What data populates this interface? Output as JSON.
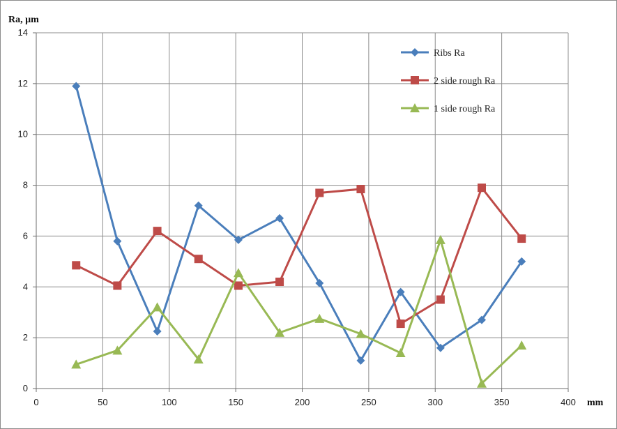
{
  "chart_data": {
    "type": "line",
    "title": "",
    "ylabel": "Ra, µm",
    "xlabel": "mm",
    "xlim": [
      0,
      400
    ],
    "ylim": [
      0,
      14
    ],
    "xticks": [
      0,
      50,
      100,
      150,
      200,
      250,
      300,
      350,
      400
    ],
    "yticks": [
      0,
      2,
      4,
      6,
      8,
      10,
      12,
      14
    ],
    "grid": true,
    "legend_position": "top-right",
    "x": [
      30,
      61,
      91,
      122,
      152,
      183,
      213,
      244,
      274,
      304,
      335,
      365
    ],
    "series": [
      {
        "name": "Ribs Ra",
        "color": "#4a7ebb",
        "marker": "diamond",
        "values": [
          11.9,
          5.8,
          2.25,
          7.2,
          5.85,
          6.7,
          4.15,
          1.1,
          3.8,
          1.6,
          2.7,
          5.0
        ]
      },
      {
        "name": "2 side rough Ra",
        "color": "#be4b48",
        "marker": "square",
        "values": [
          4.85,
          4.05,
          6.2,
          5.1,
          4.05,
          4.2,
          7.7,
          7.85,
          2.55,
          3.5,
          7.9,
          5.9
        ]
      },
      {
        "name": "1 side rough Ra",
        "color": "#98b954",
        "marker": "triangle",
        "values": [
          0.95,
          1.5,
          3.2,
          1.15,
          4.55,
          2.2,
          2.75,
          2.15,
          1.4,
          5.85,
          0.2,
          1.7
        ]
      }
    ]
  }
}
